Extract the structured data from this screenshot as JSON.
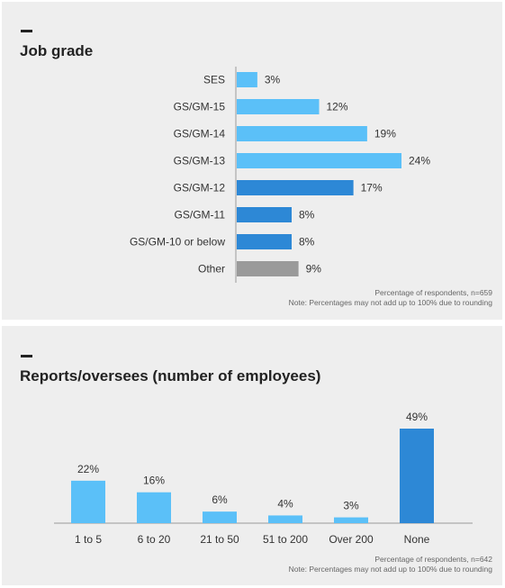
{
  "panels": [
    {
      "title": "Job grade",
      "note_line1": "Percentage of respondents, n=659",
      "note_line2": "Note: Percentages may not add up to 100% due to rounding"
    },
    {
      "title": "Reports/oversees (number of employees)",
      "note_line1": "Percentage of respondents, n=642",
      "note_line2": "Note: Percentages may not add up to 100% due to rounding"
    }
  ],
  "chart_data": [
    {
      "type": "bar",
      "orientation": "horizontal",
      "title": "Job grade",
      "categories": [
        "SES",
        "GS/GM-15",
        "GS/GM-14",
        "GS/GM-13",
        "GS/GM-12",
        "GS/GM-11",
        "GS/GM-10 or below",
        "Other"
      ],
      "values": [
        3,
        12,
        19,
        24,
        17,
        8,
        8,
        9
      ],
      "value_labels": [
        "3%",
        "12%",
        "19%",
        "24%",
        "17%",
        "8%",
        "8%",
        "9%"
      ],
      "colors": [
        "#5bc0f8",
        "#5bc0f8",
        "#5bc0f8",
        "#5bc0f8",
        "#2d88d6",
        "#2d88d6",
        "#2d88d6",
        "#9a9a9a"
      ],
      "xlim": [
        0,
        24
      ],
      "grid": false
    },
    {
      "type": "bar",
      "orientation": "vertical",
      "title": "Reports/oversees (number of employees)",
      "categories": [
        "1 to 5",
        "6 to 20",
        "21 to 50",
        "51 to 200",
        "Over 200",
        "None"
      ],
      "values": [
        22,
        16,
        6,
        4,
        3,
        49
      ],
      "value_labels": [
        "22%",
        "16%",
        "6%",
        "4%",
        "3%",
        "49%"
      ],
      "colors": [
        "#5bc0f8",
        "#5bc0f8",
        "#5bc0f8",
        "#5bc0f8",
        "#5bc0f8",
        "#2d88d6"
      ],
      "ylim": [
        0,
        49
      ],
      "grid": false
    }
  ]
}
